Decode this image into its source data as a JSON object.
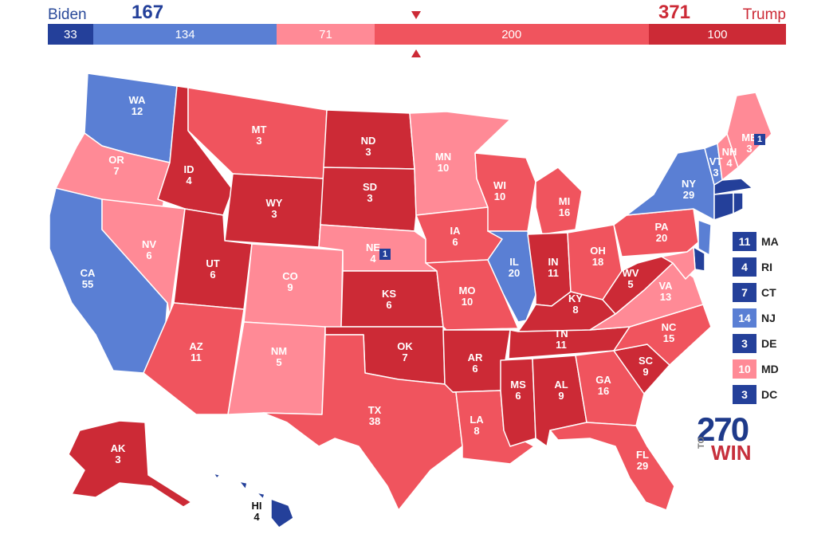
{
  "colors": {
    "safe_dem": "#24409a",
    "likely_dem": "#5a7fd4",
    "lean_dem": "#5a7fd4",
    "lean_rep": "#ff8a96",
    "likely_rep": "#f0545e",
    "safe_rep": "#cc2a36"
  },
  "header": {
    "dem_name": "Biden",
    "dem_total": "167",
    "rep_name": "Trump",
    "rep_total": "371",
    "segments": [
      {
        "label": "33",
        "value": 33,
        "color": "#24409a"
      },
      {
        "label": "134",
        "value": 134,
        "color": "#5a7fd4"
      },
      {
        "label": "71",
        "value": 71,
        "color": "#ff8a96"
      },
      {
        "label": "200",
        "value": 200,
        "color": "#f0545e"
      },
      {
        "label": "100",
        "value": 100,
        "color": "#cc2a36"
      }
    ]
  },
  "states": [
    {
      "abbr": "WA",
      "ev": "12",
      "rating": "likely_dem"
    },
    {
      "abbr": "OR",
      "ev": "7",
      "rating": "lean_rep"
    },
    {
      "abbr": "CA",
      "ev": "55",
      "rating": "likely_dem"
    },
    {
      "abbr": "NV",
      "ev": "6",
      "rating": "lean_rep"
    },
    {
      "abbr": "ID",
      "ev": "4",
      "rating": "safe_rep"
    },
    {
      "abbr": "MT",
      "ev": "3",
      "rating": "likely_rep"
    },
    {
      "abbr": "WY",
      "ev": "3",
      "rating": "safe_rep"
    },
    {
      "abbr": "UT",
      "ev": "6",
      "rating": "safe_rep"
    },
    {
      "abbr": "AZ",
      "ev": "11",
      "rating": "likely_rep"
    },
    {
      "abbr": "CO",
      "ev": "9",
      "rating": "lean_rep"
    },
    {
      "abbr": "NM",
      "ev": "5",
      "rating": "lean_rep"
    },
    {
      "abbr": "ND",
      "ev": "3",
      "rating": "safe_rep"
    },
    {
      "abbr": "SD",
      "ev": "3",
      "rating": "safe_rep"
    },
    {
      "abbr": "NE",
      "ev": "4",
      "rating": "lean_rep"
    },
    {
      "abbr": "KS",
      "ev": "6",
      "rating": "safe_rep"
    },
    {
      "abbr": "OK",
      "ev": "7",
      "rating": "safe_rep"
    },
    {
      "abbr": "TX",
      "ev": "38",
      "rating": "likely_rep"
    },
    {
      "abbr": "MN",
      "ev": "10",
      "rating": "lean_rep"
    },
    {
      "abbr": "IA",
      "ev": "6",
      "rating": "likely_rep"
    },
    {
      "abbr": "MO",
      "ev": "10",
      "rating": "likely_rep"
    },
    {
      "abbr": "AR",
      "ev": "6",
      "rating": "safe_rep"
    },
    {
      "abbr": "LA",
      "ev": "8",
      "rating": "likely_rep"
    },
    {
      "abbr": "WI",
      "ev": "10",
      "rating": "likely_rep"
    },
    {
      "abbr": "IL",
      "ev": "20",
      "rating": "likely_dem"
    },
    {
      "abbr": "MI",
      "ev": "16",
      "rating": "likely_rep"
    },
    {
      "abbr": "IN",
      "ev": "11",
      "rating": "safe_rep"
    },
    {
      "abbr": "OH",
      "ev": "18",
      "rating": "likely_rep"
    },
    {
      "abbr": "KY",
      "ev": "8",
      "rating": "safe_rep"
    },
    {
      "abbr": "TN",
      "ev": "11",
      "rating": "safe_rep"
    },
    {
      "abbr": "MS",
      "ev": "6",
      "rating": "safe_rep"
    },
    {
      "abbr": "AL",
      "ev": "9",
      "rating": "safe_rep"
    },
    {
      "abbr": "GA",
      "ev": "16",
      "rating": "likely_rep"
    },
    {
      "abbr": "FL",
      "ev": "29",
      "rating": "likely_rep"
    },
    {
      "abbr": "SC",
      "ev": "9",
      "rating": "safe_rep"
    },
    {
      "abbr": "NC",
      "ev": "15",
      "rating": "likely_rep"
    },
    {
      "abbr": "VA",
      "ev": "13",
      "rating": "lean_rep"
    },
    {
      "abbr": "WV",
      "ev": "5",
      "rating": "safe_rep"
    },
    {
      "abbr": "PA",
      "ev": "20",
      "rating": "likely_rep"
    },
    {
      "abbr": "NY",
      "ev": "29",
      "rating": "likely_dem"
    },
    {
      "abbr": "VT",
      "ev": "3",
      "rating": "likely_dem"
    },
    {
      "abbr": "NH",
      "ev": "4",
      "rating": "lean_rep"
    },
    {
      "abbr": "ME",
      "ev": "3",
      "rating": "lean_rep"
    },
    {
      "abbr": "AK",
      "ev": "3",
      "rating": "safe_rep"
    },
    {
      "abbr": "HI",
      "ev": "4",
      "rating": "safe_dem"
    }
  ],
  "district_boxes": {
    "ne": "1",
    "me": "1"
  },
  "small_states": [
    {
      "abbr": "MA",
      "ev": "11",
      "color": "#24409a"
    },
    {
      "abbr": "RI",
      "ev": "4",
      "color": "#24409a"
    },
    {
      "abbr": "CT",
      "ev": "7",
      "color": "#24409a"
    },
    {
      "abbr": "NJ",
      "ev": "14",
      "color": "#5a7fd4"
    },
    {
      "abbr": "DE",
      "ev": "3",
      "color": "#24409a"
    },
    {
      "abbr": "MD",
      "ev": "10",
      "color": "#ff8a96"
    },
    {
      "abbr": "DC",
      "ev": "3",
      "color": "#24409a"
    }
  ],
  "logo": {
    "number": "270",
    "to": "TO",
    "win": "WIN"
  }
}
